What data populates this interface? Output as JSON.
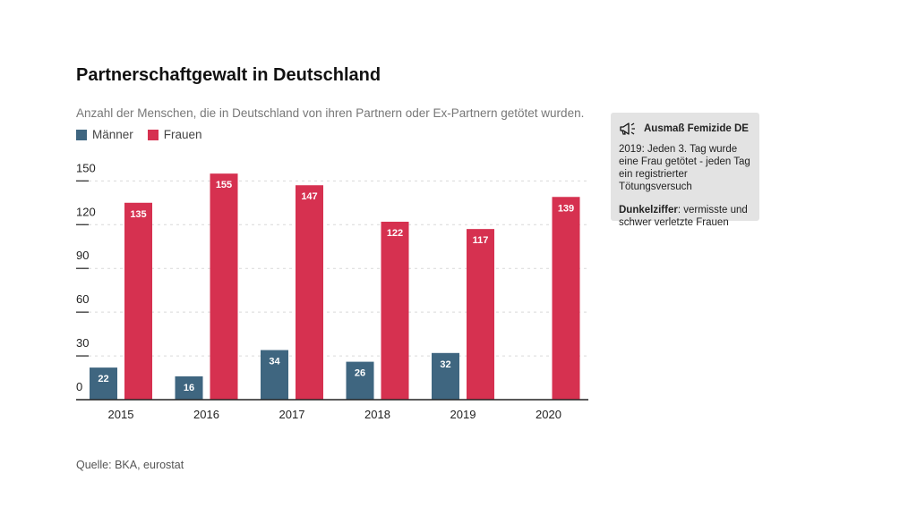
{
  "title": "Partnerschaftgewalt in Deutschland",
  "subtitle": "Anzahl der Menschen, die in Deutschland von ihren Partnern oder Ex-Partnern getötet wurden.",
  "source": "Quelle: BKA, eurostat",
  "colors": {
    "maenner": "#3f6680",
    "frauen": "#d63150"
  },
  "infobox": {
    "icon": "megaphone-icon",
    "title": "Ausmaß Femizide DE",
    "text": "2019: Jeden 3. Tag wurde eine Frau getötet - jeden Tag ein registrierter Tötungsversuch",
    "text2_bold": "Dunkelziffer",
    "text2_rest": ": vermisste und schwer verletzte Frauen"
  },
  "chart_data": {
    "type": "bar",
    "categories": [
      "2015",
      "2016",
      "2017",
      "2018",
      "2019",
      "2020"
    ],
    "series": [
      {
        "name": "Männer",
        "values": [
          22,
          16,
          34,
          26,
          32,
          null
        ]
      },
      {
        "name": "Frauen",
        "values": [
          135,
          155,
          147,
          122,
          117,
          139
        ]
      }
    ],
    "y_ticks": [
      0,
      30,
      60,
      90,
      120,
      150
    ],
    "ylim": [
      0,
      160
    ],
    "grid": true,
    "legend": "top-left",
    "data_labels": true
  }
}
